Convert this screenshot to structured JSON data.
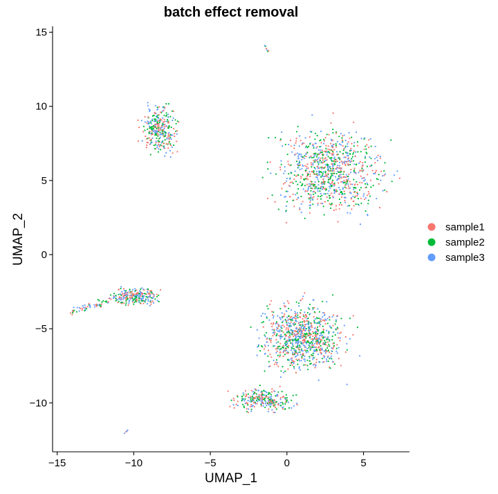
{
  "chart_data": {
    "type": "scatter",
    "title": "batch effect removal",
    "xlabel": "UMAP_1",
    "ylabel": "UMAP_2",
    "xlim": [
      -15.3,
      8.0
    ],
    "ylim": [
      -13.3,
      15.4
    ],
    "xticks": [
      -15,
      -10,
      -5,
      0,
      5
    ],
    "yticks": [
      -10,
      -5,
      0,
      5,
      10,
      15
    ],
    "xtick_labels": [
      "−15",
      "−10",
      "−5",
      "0",
      "5"
    ],
    "ytick_labels": [
      "−10",
      "−5",
      "0",
      "5",
      "10",
      "15"
    ],
    "grid": false,
    "legend_position": "right",
    "series": [
      {
        "name": "sample1",
        "color": "#F8766D"
      },
      {
        "name": "sample2",
        "color": "#00BA38"
      },
      {
        "name": "sample3",
        "color": "#619CFF"
      }
    ],
    "clusters": [
      {
        "label": "top-small",
        "points": [
          [
            -1.4,
            14.05
          ],
          [
            -1.35,
            13.9
          ],
          [
            -1.3,
            13.8
          ],
          [
            -1.25,
            13.7
          ],
          [
            -1.45,
            14.1
          ],
          [
            -1.2,
            13.75
          ]
        ]
      },
      {
        "label": "left-upper",
        "center": [
          -8.3,
          8.4
        ],
        "spread": [
          1.2,
          1.6
        ],
        "n": 300
      },
      {
        "label": "right-upper",
        "center": [
          2.8,
          5.6
        ],
        "spread": [
          3.6,
          3.0
        ],
        "n": 900
      },
      {
        "label": "lower",
        "center": [
          1.0,
          -5.5
        ],
        "spread": [
          2.8,
          2.4
        ],
        "n": 900
      },
      {
        "label": "lower-tail",
        "center": [
          -1.5,
          -9.8
        ],
        "spread": [
          2.0,
          0.8
        ],
        "n": 260
      },
      {
        "label": "left-arm",
        "center": [
          -9.8,
          -2.8
        ],
        "spread": [
          1.5,
          0.6
        ],
        "n": 220
      },
      {
        "label": "left-tail",
        "from": [
          -14.1,
          -3.9
        ],
        "to": [
          -10.5,
          -2.7
        ],
        "n": 80
      },
      {
        "label": "bottom-small",
        "points": [
          [
            -10.5,
            -11.95
          ],
          [
            -10.4,
            -11.85
          ],
          [
            -10.6,
            -12.05
          ],
          [
            -10.45,
            -11.9
          ]
        ]
      }
    ]
  }
}
